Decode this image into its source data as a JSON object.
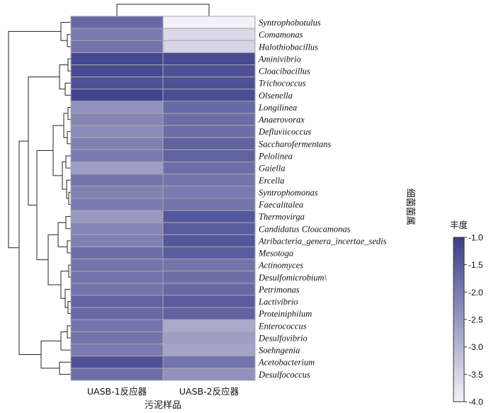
{
  "chart_data": {
    "type": "heatmap",
    "xlabel": "污泥样品",
    "ylabel": "细菌菌属",
    "columns": [
      "UASB-1反应器",
      "UASB-2反应器"
    ],
    "rows": [
      "Syntrophobotulus",
      "Comamonas",
      "Halothiobacillus",
      "Aminivibrio",
      "Cloacibacillus",
      "Trichococcus",
      "Olsenella",
      "Longilinea",
      "Anaerovorax",
      "Defluviicoccus",
      "Saccharofermentans",
      "Pelolinea",
      "Gaiella",
      "Ercella",
      "Syntrophomonas",
      "Faecalitalea",
      "Thermovirga",
      "Candidatus Cloacamonas",
      "Atribacteria_genera_incertae_sedis",
      "Mesotoga",
      "Actinomyces",
      "Desulfomicrobium\\",
      "Petrimonas",
      "Lactivibrio",
      "Proteiniphilum",
      "Enterococcus",
      "Desulfovibrio",
      "Soehngenia",
      "Acetobacterium",
      "Desulfococcus"
    ],
    "values": [
      [
        -1.7,
        -4.0
      ],
      [
        -2.0,
        -3.6
      ],
      [
        -1.9,
        -3.5
      ],
      [
        -1.15,
        -1.2
      ],
      [
        -1.2,
        -1.3
      ],
      [
        -1.3,
        -1.3
      ],
      [
        -1.1,
        -1.25
      ],
      [
        -2.4,
        -1.7
      ],
      [
        -2.2,
        -1.8
      ],
      [
        -2.3,
        -1.8
      ],
      [
        -2.1,
        -1.6
      ],
      [
        -2.0,
        -1.6
      ],
      [
        -2.6,
        -1.8
      ],
      [
        -1.9,
        -1.9
      ],
      [
        -2.1,
        -2.0
      ],
      [
        -2.0,
        -1.9
      ],
      [
        -2.5,
        -1.4
      ],
      [
        -2.2,
        -1.5
      ],
      [
        -2.1,
        -1.4
      ],
      [
        -1.8,
        -1.5
      ],
      [
        -1.9,
        -1.9
      ],
      [
        -1.9,
        -1.8
      ],
      [
        -1.9,
        -1.7
      ],
      [
        -1.6,
        -1.5
      ],
      [
        -1.7,
        -1.6
      ],
      [
        -1.9,
        -2.8
      ],
      [
        -1.9,
        -2.6
      ],
      [
        -2.0,
        -2.7
      ],
      [
        -1.3,
        -1.9
      ],
      [
        -1.8,
        -2.4
      ]
    ],
    "colorbar": {
      "title": "丰度",
      "min": -4.0,
      "max": -1.0,
      "ticks": [
        "-1.0",
        "-1.5",
        "-2.0",
        "-2.5",
        "-3.0",
        "-3.5",
        "-4.0"
      ],
      "colors": {
        "high": "#3b3f8a",
        "low": "#f4f1f8"
      }
    }
  }
}
